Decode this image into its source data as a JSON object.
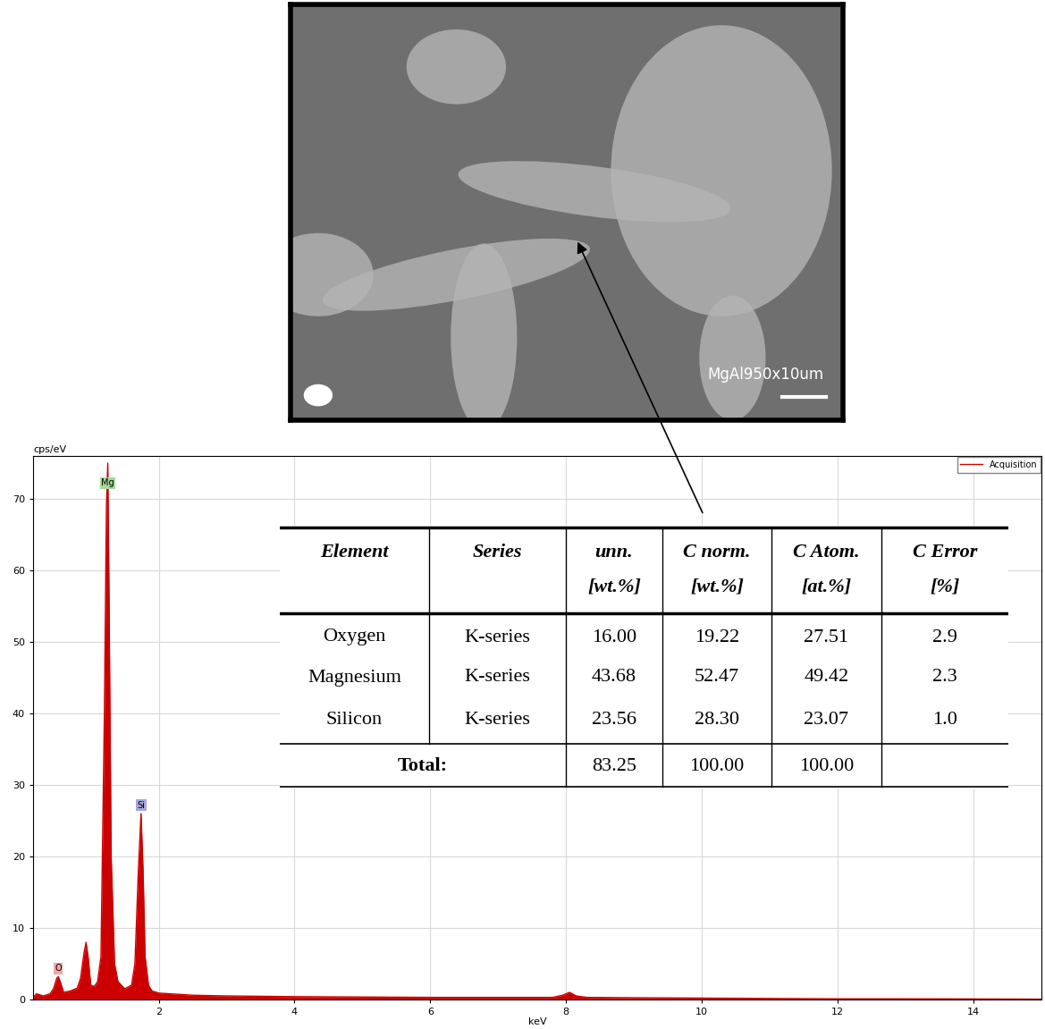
{
  "chart_data": {
    "type": "line",
    "x_label": "keV",
    "y_label": "cps/eV",
    "xlim": [
      0.15,
      15
    ],
    "ylim": [
      0,
      76
    ],
    "xticks": [
      2,
      4,
      6,
      8,
      10,
      12,
      14
    ],
    "yticks": [
      0,
      10,
      20,
      30,
      40,
      50,
      60,
      70
    ],
    "grid": true,
    "legend": "upper right",
    "series": [
      {
        "name": "Acquisition",
        "color": "#cc0000",
        "x": [
          0.15,
          0.2,
          0.3,
          0.4,
          0.45,
          0.5,
          0.52,
          0.55,
          0.6,
          0.7,
          0.8,
          0.85,
          0.9,
          0.93,
          0.96,
          1.0,
          1.05,
          1.1,
          1.15,
          1.2,
          1.23,
          1.25,
          1.27,
          1.3,
          1.35,
          1.4,
          1.5,
          1.6,
          1.65,
          1.7,
          1.74,
          1.77,
          1.8,
          1.85,
          1.9,
          2.0,
          2.5,
          3.0,
          4.0,
          5.0,
          6.0,
          7.0,
          7.8,
          7.95,
          8.05,
          8.15,
          8.3,
          9.0,
          10.0,
          11.0,
          12.0,
          13.0,
          14.0,
          15.0
        ],
        "values": [
          0.3,
          0.8,
          0.5,
          0.8,
          1.5,
          3.0,
          3.2,
          2.5,
          1.0,
          1.2,
          1.6,
          3.0,
          6.5,
          8.0,
          6.0,
          2.0,
          1.8,
          2.5,
          6.0,
          40,
          69,
          75,
          55,
          20,
          5,
          2.5,
          1.5,
          2.0,
          5,
          18,
          26,
          18,
          6,
          2,
          1.2,
          0.9,
          0.6,
          0.5,
          0.4,
          0.35,
          0.3,
          0.3,
          0.3,
          0.6,
          1.0,
          0.5,
          0.3,
          0.25,
          0.2,
          0.15,
          0.1,
          0.1,
          0.08,
          0.05
        ]
      }
    ],
    "peak_labels": [
      {
        "label": "O",
        "x": 0.52,
        "color": "#f4a6a6"
      },
      {
        "label": "Mg",
        "x": 1.25,
        "color": "#a6d99a"
      },
      {
        "label": "Si",
        "x": 1.74,
        "color": "#a6a6e0"
      }
    ]
  },
  "image": {
    "caption": "MgAl950x10um"
  },
  "table": {
    "header": [
      [
        "Element"
      ],
      [
        "Series"
      ],
      [
        "unn.",
        "[wt.%]"
      ],
      [
        "C norm.",
        "[wt.%]"
      ],
      [
        "C Atom.",
        "[at.%]"
      ],
      [
        "C Error",
        "[%]"
      ]
    ],
    "rows": [
      [
        "Oxygen",
        "K-series",
        "16.00",
        "19.22",
        "27.51",
        "2.9"
      ],
      [
        "Magnesium",
        "K-series",
        "43.68",
        "52.47",
        "49.42",
        "2.3"
      ],
      [
        "Silicon",
        "K-series",
        "23.56",
        "28.30",
        "23.07",
        "1.0"
      ]
    ],
    "total": {
      "label": "Total:",
      "values": [
        "83.25",
        "100.00",
        "100.00"
      ]
    }
  }
}
